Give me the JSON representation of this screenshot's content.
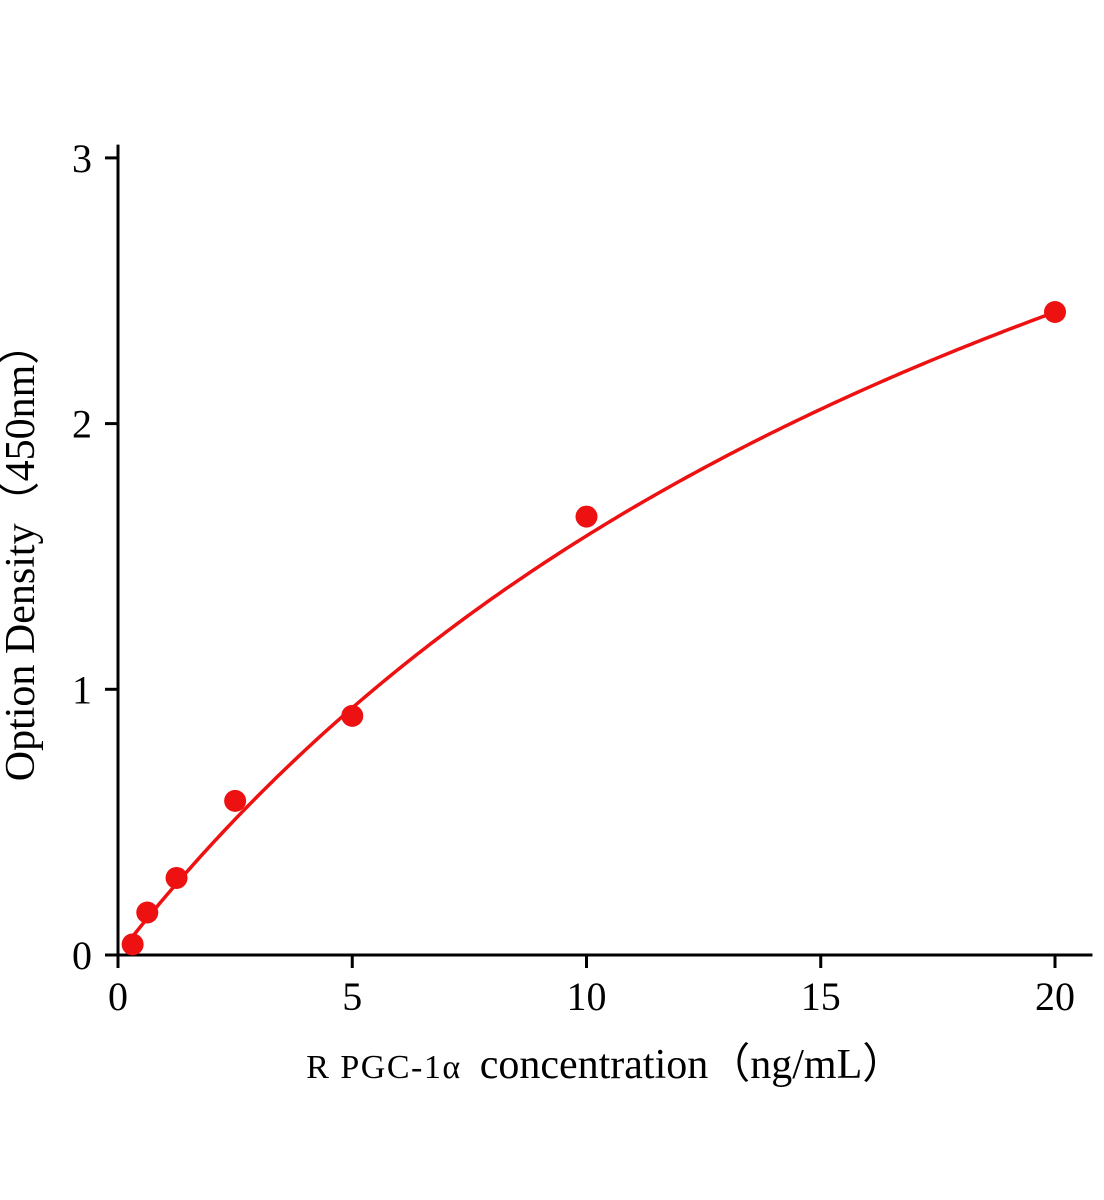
{
  "chart_data": {
    "type": "scatter",
    "title": "",
    "xlabel": "R PGC-1α concentration（ng/mL）",
    "xlabel_prefix": "R PGC-1α",
    "xlabel_rest": "concentration（ng/mL）",
    "ylabel": "Option Density（450nm）",
    "x": [
      0.3125,
      0.625,
      1.25,
      2.5,
      5,
      10,
      20
    ],
    "values": [
      0.04,
      0.16,
      0.29,
      0.58,
      0.9,
      1.65,
      2.42
    ],
    "xlim": [
      0,
      20.8
    ],
    "ylim": [
      0,
      3.05
    ],
    "xticks": [
      0,
      5,
      10,
      15,
      20
    ],
    "yticks": [
      0,
      1,
      2,
      3
    ],
    "grid": false,
    "legend": false,
    "marker_color": "#ee1111",
    "line_color": "#ee1111",
    "axis_color": "#000000",
    "marker_radius": 11,
    "fit": {
      "model": "y = vmax*x/(km+x)",
      "vmax": 5.19,
      "km": 22.9,
      "x_start": 0.15,
      "x_end": 20
    }
  }
}
